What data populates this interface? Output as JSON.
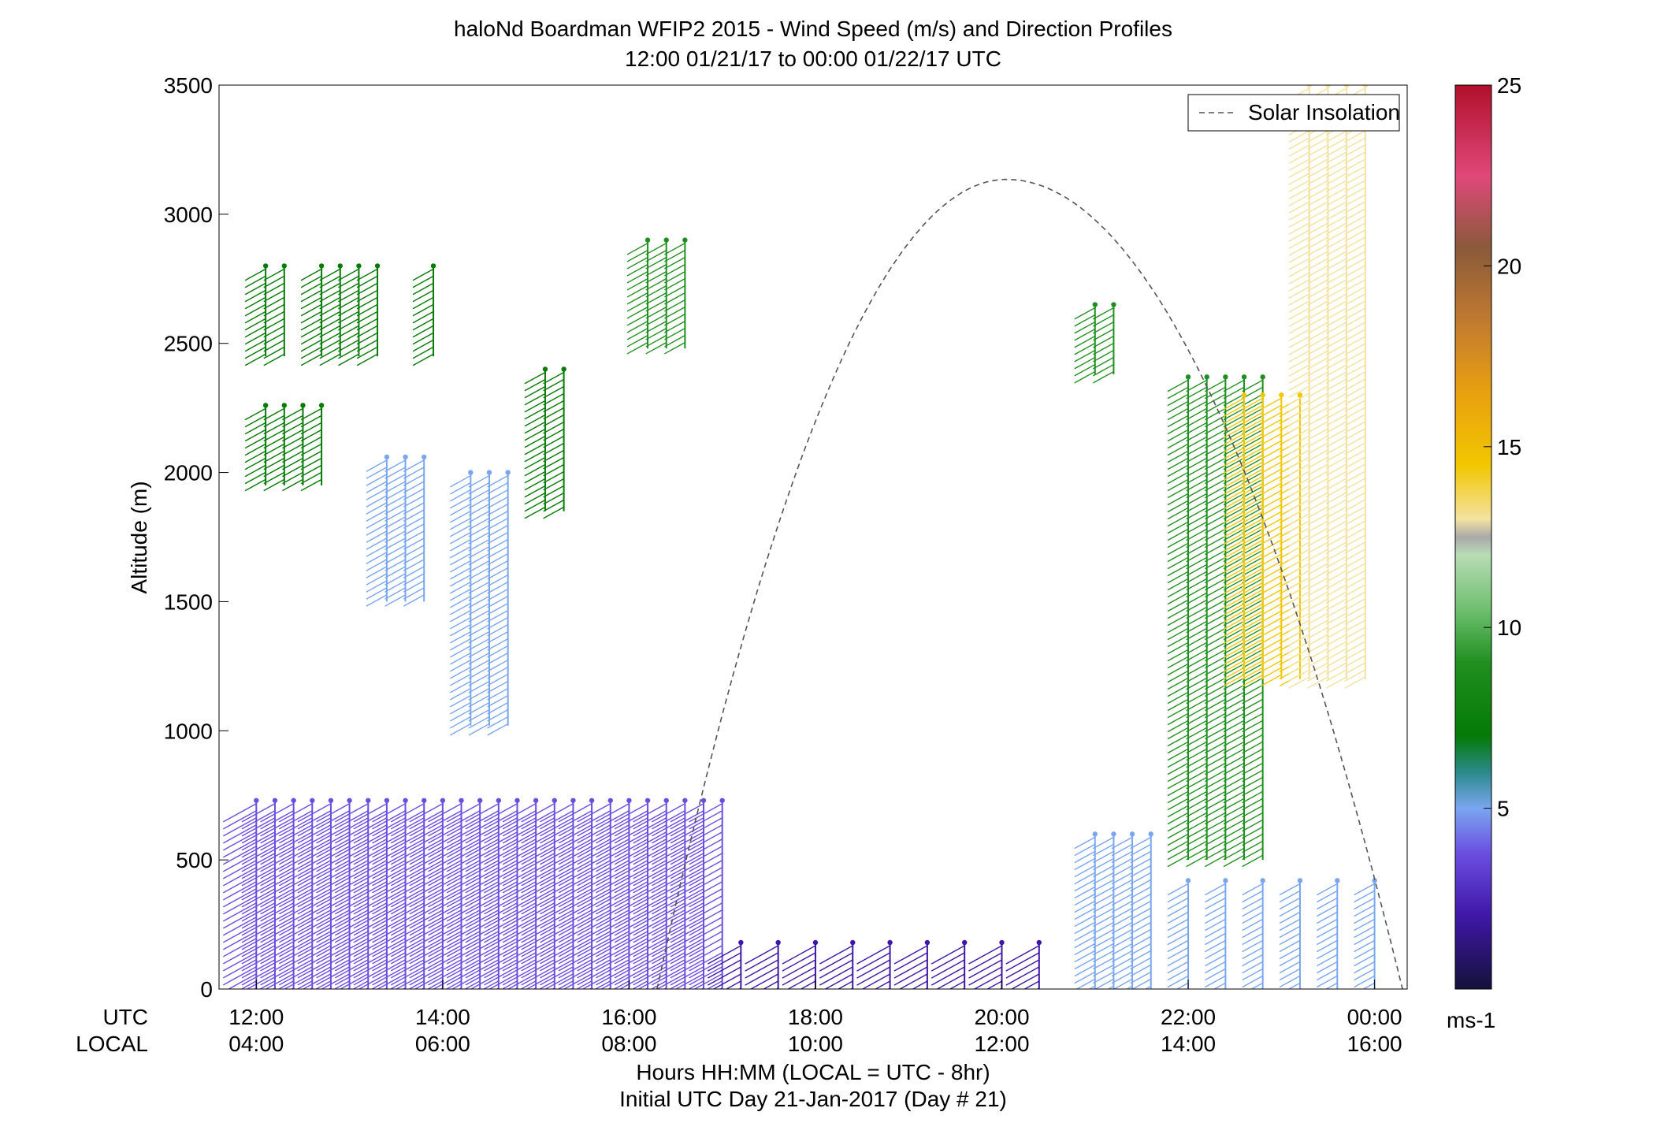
{
  "chart_data": {
    "type": "scatter",
    "title": "haloNd Boardman WFIP2 2015 - Wind Speed (m/s) and Direction Profiles",
    "subtitle": "12:00 01/21/17 to 00:00 01/22/17  UTC",
    "ylabel": "Altitude (m)",
    "xlabel": "Hours HH:MM  (LOCAL = UTC - 8hr)",
    "xlabel2": "Initial UTC Day 21-Jan-2017 (Day # 21)",
    "row_label_utc": "UTC",
    "row_label_local": "LOCAL",
    "xlim_hours": [
      11.6,
      24.35
    ],
    "ylim": [
      0,
      3500
    ],
    "x_ticks": [
      {
        "hour": 12,
        "utc": "12:00",
        "local": "04:00"
      },
      {
        "hour": 14,
        "utc": "14:00",
        "local": "06:00"
      },
      {
        "hour": 16,
        "utc": "16:00",
        "local": "08:00"
      },
      {
        "hour": 18,
        "utc": "18:00",
        "local": "10:00"
      },
      {
        "hour": 20,
        "utc": "20:00",
        "local": "12:00"
      },
      {
        "hour": 22,
        "utc": "22:00",
        "local": "14:00"
      },
      {
        "hour": 24,
        "utc": "00:00",
        "local": "16:00"
      }
    ],
    "y_ticks": [
      0,
      500,
      1000,
      1500,
      2000,
      2500,
      3000,
      3500
    ],
    "colorbar": {
      "range": [
        0,
        25
      ],
      "ticks": [
        5,
        10,
        15,
        20,
        25
      ],
      "unit": "ms-1",
      "colors": [
        "#14123a",
        "#3f16a6",
        "#6a4ee0",
        "#7aa6f0",
        "#2a8a8a",
        "#057a05",
        "#1f8f1f",
        "#6fbf6f",
        "#b8dcb4",
        "#a9a9a9",
        "#f4e2a0",
        "#f2c600",
        "#e8a010",
        "#c07a30",
        "#8a5a3a",
        "#e0487a",
        "#b0102a"
      ]
    },
    "legend": {
      "label": "Solar Insolation",
      "position": "top-right",
      "style": "dashed",
      "color": "#555555"
    },
    "solar_insolation": {
      "start_hour": 16.3,
      "peak_hour": 20.05,
      "peak_altitude": 3135,
      "end_hour": 24.3
    },
    "grid": false,
    "series": [
      {
        "hours": [
          12.0,
          12.2,
          12.4,
          12.6,
          12.8,
          13.0,
          13.2,
          13.4,
          13.6,
          13.8,
          14.0,
          14.2,
          14.4,
          14.6,
          14.8,
          15.0,
          15.2,
          15.4,
          15.6,
          15.8,
          16.0,
          16.2,
          16.4,
          16.6,
          16.8,
          17.0
        ],
        "alt_range": [
          0,
          730
        ],
        "speed": 3
      },
      {
        "hours": [
          12.1,
          12.3,
          12.7,
          12.9,
          13.1,
          13.3,
          13.9
        ],
        "alt_range": [
          2450,
          2800
        ],
        "speed": 8
      },
      {
        "hours": [
          12.1,
          12.3,
          12.5,
          12.7
        ],
        "alt_range": [
          1950,
          2260
        ],
        "speed": 8
      },
      {
        "hours": [
          13.4,
          13.6,
          13.8
        ],
        "alt_range": [
          1500,
          2060
        ],
        "speed": 4
      },
      {
        "hours": [
          14.3,
          14.5,
          14.7
        ],
        "alt_range": [
          1020,
          2000
        ],
        "speed": 5
      },
      {
        "hours": [
          15.1,
          15.3
        ],
        "alt_range": [
          1850,
          2400
        ],
        "speed": 8
      },
      {
        "hours": [
          16.2,
          16.4,
          16.6
        ],
        "alt_range": [
          2480,
          2900
        ],
        "speed": 9
      },
      {
        "hours": [
          17.2,
          17.6,
          18.0,
          18.4,
          18.8,
          19.2,
          19.6,
          20.0,
          20.4
        ],
        "alt_range": [
          0,
          180
        ],
        "speed": 1
      },
      {
        "hours": [
          21.0,
          21.2
        ],
        "alt_range": [
          2380,
          2650
        ],
        "speed": 9
      },
      {
        "hours": [
          21.0,
          21.2,
          21.4,
          21.6
        ],
        "alt_range": [
          0,
          600
        ],
        "speed": 4
      },
      {
        "hours": [
          22.0,
          22.2,
          22.4,
          22.6,
          22.8
        ],
        "alt_range": [
          500,
          2370
        ],
        "speed": 9
      },
      {
        "hours": [
          22.6,
          22.8,
          23.0,
          23.2
        ],
        "alt_range": [
          1200,
          2300
        ],
        "speed": 17
      },
      {
        "hours": [
          23.3,
          23.5,
          23.7,
          23.9
        ],
        "alt_range": [
          1200,
          3500
        ],
        "speed": 15
      },
      {
        "hours": [
          22.0,
          22.4,
          22.8,
          23.2,
          23.6,
          24.0
        ],
        "alt_range": [
          0,
          420
        ],
        "speed": 4
      }
    ]
  }
}
